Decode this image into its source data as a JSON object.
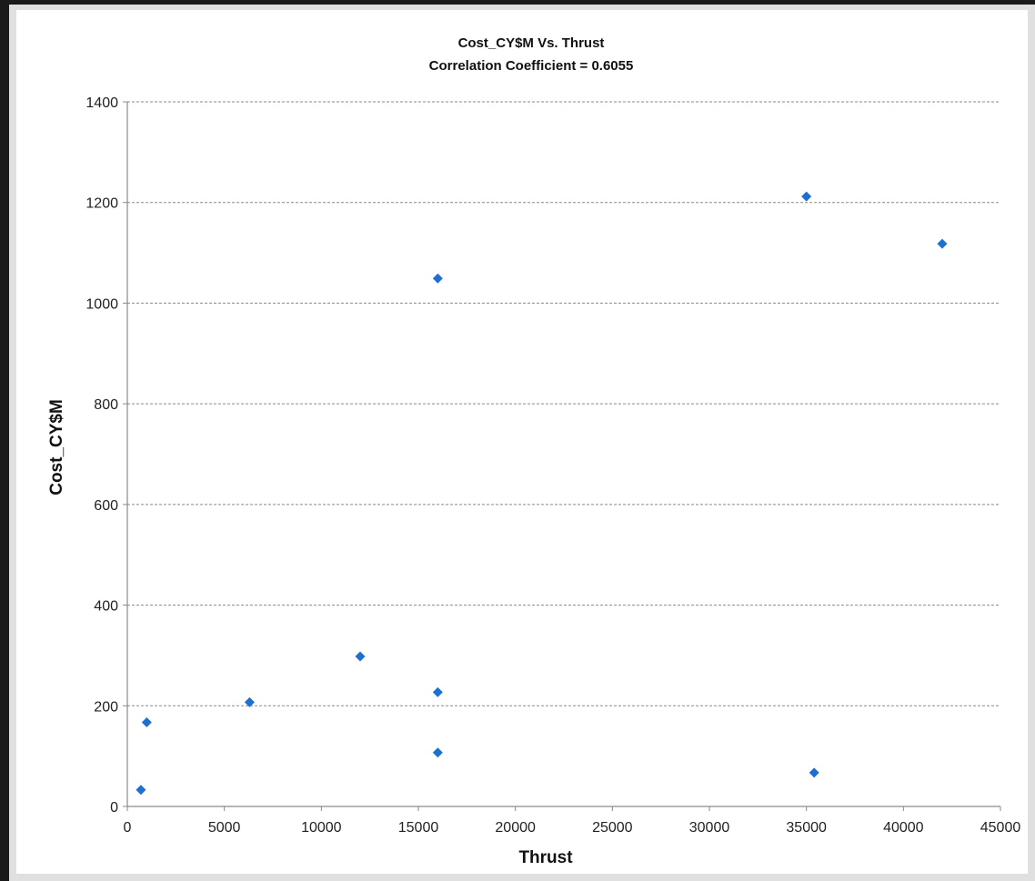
{
  "chart_data": {
    "type": "scatter",
    "title": "Cost_CY$M Vs. Thrust",
    "subtitle": "Correlation Coefficient = 0.6055",
    "xlabel": "Thrust",
    "ylabel": "Cost_CY$M",
    "xlim": [
      0,
      45000
    ],
    "ylim": [
      0,
      1400
    ],
    "x_ticks": [
      "0",
      "5000",
      "10000",
      "15000",
      "20000",
      "25000",
      "30000",
      "35000",
      "40000",
      "45000"
    ],
    "y_ticks": [
      "0",
      "200",
      "400",
      "600",
      "800",
      "1000",
      "1200",
      "1400"
    ],
    "grid": "horizontal dashed",
    "legend": "none",
    "marker": "diamond",
    "color": "#1f6fd1",
    "points": [
      {
        "x": 700,
        "y": 33
      },
      {
        "x": 1000,
        "y": 167
      },
      {
        "x": 6300,
        "y": 207
      },
      {
        "x": 12000,
        "y": 298
      },
      {
        "x": 16000,
        "y": 227
      },
      {
        "x": 16000,
        "y": 107
      },
      {
        "x": 16000,
        "y": 1049
      },
      {
        "x": 35000,
        "y": 1212
      },
      {
        "x": 35400,
        "y": 67
      },
      {
        "x": 42000,
        "y": 1118
      }
    ]
  }
}
